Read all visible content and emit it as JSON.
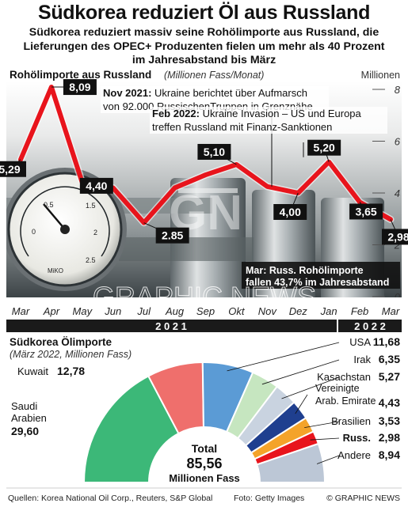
{
  "header": {
    "title": "Südkorea reduziert Öl aus Russland",
    "subtitle": "Südkorea reduziert massiv seine Rohölimporte aus Russland, die Lieferungen des OPEC+ Produzenten fielen um mehr als 40 Prozent im Jahresabstand bis März"
  },
  "chart_data": [
    {
      "type": "line",
      "title": "Rohölimporte aus Russland",
      "subtitle": "(Millionen Fass/Monat)",
      "ylabel": "Millionen",
      "ylim": [
        0,
        8
      ],
      "yticks": [
        "0",
        "2",
        "4",
        "6",
        "8"
      ],
      "categories": [
        "Mar",
        "Apr",
        "May",
        "Jun",
        "Jul",
        "Aug",
        "Sep",
        "Okt",
        "Nov",
        "Dez",
        "Jan",
        "Feb",
        "Mar"
      ],
      "years": [
        "2 0 2 1",
        "2 0 2 2"
      ],
      "values": [
        5.29,
        8.09,
        4.4,
        4.2,
        2.85,
        4.2,
        4.7,
        5.1,
        4.25,
        4.0,
        5.2,
        3.65,
        2.98
      ],
      "value_labels": [
        {
          "index": 0,
          "text": "5,29"
        },
        {
          "index": 1,
          "text": "8,09"
        },
        {
          "index": 2,
          "text": "4,40"
        },
        {
          "index": 4,
          "text": "2.85"
        },
        {
          "index": 7,
          "text": "5,10"
        },
        {
          "index": 9,
          "text": "4,00"
        },
        {
          "index": 10,
          "text": "5,20"
        },
        {
          "index": 11,
          "text": "3,65"
        },
        {
          "index": 12,
          "text": "2,98"
        }
      ],
      "annotations": [
        {
          "bold": "Nov 2021:",
          "text": " Ukraine berichtet über Aufmarsch",
          "text2": "von 92.000 RussischenTruppen in Grenznähe"
        },
        {
          "bold": "Feb 2022:",
          "text": " Ukraine Invasion – US und Europa",
          "text2": "treffen Russland mit Finanz-Sanktionen"
        },
        {
          "bold": "Mar: Russ. Rohölimporte",
          "text2": "fallen 43,7% im Jahresabstand"
        }
      ],
      "line_color": "#e8141c"
    },
    {
      "type": "pie",
      "title": "Südkorea Ölimporte",
      "subtitle": "(März 2022, Millionen Fass)",
      "total_label": "Total",
      "total_value": "85,56",
      "total_unit": "Millionen Fass",
      "slices": [
        {
          "name": "Saudi Arabien",
          "value": 29.6,
          "label": "29,60",
          "color": "#3cb878"
        },
        {
          "name": "Kuwait",
          "value": 12.78,
          "label": "12,78",
          "color": "#ef6f6c"
        },
        {
          "name": "USA",
          "value": 11.68,
          "label": "11,68",
          "color": "#5b9bd5"
        },
        {
          "name": "Irak",
          "value": 6.35,
          "label": "6,35",
          "color": "#c6e6c0"
        },
        {
          "name": "Kasachstan",
          "value": 5.27,
          "label": "5,27",
          "color": "#c9d3e0"
        },
        {
          "name": "Vereinigte Arab. Emirate",
          "value": 4.43,
          "label": "4,43",
          "color": "#1f3f8f"
        },
        {
          "name": "Brasilien",
          "value": 3.53,
          "label": "3,53",
          "color": "#f4a32a"
        },
        {
          "name": "Russ.",
          "value": 2.98,
          "label": "2,98",
          "color": "#e8141c"
        },
        {
          "name": "Andere",
          "value": 8.94,
          "label": "8,94",
          "color": "#bcc7d6"
        }
      ]
    }
  ],
  "footer": {
    "sources": "Quellen: Korea National Oil Corp., Reuters, S&P Global",
    "photo": "Foto: Getty Images",
    "credit": "© GRAPHIC NEWS",
    "watermark": "GRAPHIC NEWS"
  }
}
